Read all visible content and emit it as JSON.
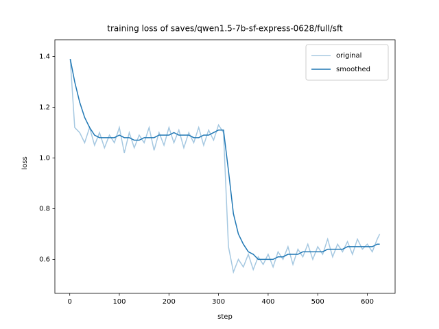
{
  "chart_data": {
    "type": "line",
    "title": "training loss of saves/qwen1.5-7b-sf-express-0628/full/sft",
    "x_label": "step",
    "y_label": "loss",
    "x": [
      1,
      10,
      20,
      30,
      40,
      50,
      60,
      70,
      80,
      90,
      100,
      110,
      120,
      130,
      140,
      150,
      160,
      170,
      180,
      190,
      200,
      210,
      220,
      230,
      240,
      250,
      260,
      270,
      280,
      290,
      300,
      310,
      320,
      330,
      340,
      350,
      360,
      370,
      380,
      390,
      400,
      410,
      420,
      430,
      440,
      450,
      460,
      470,
      480,
      490,
      500,
      510,
      520,
      530,
      540,
      550,
      560,
      570,
      580,
      590,
      600,
      610,
      620,
      625
    ],
    "series": [
      {
        "name": "original",
        "color": "#a5c8e1",
        "values": [
          1.39,
          1.12,
          1.1,
          1.06,
          1.12,
          1.05,
          1.1,
          1.04,
          1.09,
          1.06,
          1.12,
          1.02,
          1.1,
          1.04,
          1.09,
          1.06,
          1.12,
          1.03,
          1.1,
          1.05,
          1.12,
          1.06,
          1.11,
          1.04,
          1.1,
          1.06,
          1.12,
          1.05,
          1.11,
          1.07,
          1.13,
          1.1,
          0.65,
          0.55,
          0.6,
          0.57,
          0.62,
          0.56,
          0.61,
          0.58,
          0.62,
          0.57,
          0.63,
          0.6,
          0.65,
          0.58,
          0.64,
          0.61,
          0.66,
          0.6,
          0.65,
          0.62,
          0.68,
          0.61,
          0.66,
          0.63,
          0.67,
          0.62,
          0.68,
          0.64,
          0.66,
          0.63,
          0.68,
          0.7
        ]
      },
      {
        "name": "smoothed",
        "color": "#1f77b4",
        "values": [
          1.39,
          1.3,
          1.22,
          1.16,
          1.12,
          1.09,
          1.08,
          1.08,
          1.08,
          1.08,
          1.09,
          1.08,
          1.08,
          1.07,
          1.07,
          1.08,
          1.08,
          1.08,
          1.09,
          1.09,
          1.09,
          1.1,
          1.09,
          1.09,
          1.09,
          1.08,
          1.08,
          1.09,
          1.09,
          1.1,
          1.11,
          1.11,
          0.95,
          0.78,
          0.7,
          0.66,
          0.63,
          0.62,
          0.6,
          0.6,
          0.6,
          0.6,
          0.61,
          0.61,
          0.62,
          0.62,
          0.62,
          0.63,
          0.63,
          0.63,
          0.63,
          0.63,
          0.64,
          0.64,
          0.64,
          0.64,
          0.65,
          0.65,
          0.65,
          0.65,
          0.65,
          0.65,
          0.66,
          0.66
        ]
      }
    ],
    "xlim": [
      -30,
      656
    ],
    "ylim": [
      0.466,
      1.466
    ],
    "xticks": [
      0,
      100,
      200,
      300,
      400,
      500,
      600
    ],
    "yticks": [
      0.6,
      0.8,
      {
        "value": 1,
        "label": "1.0"
      },
      1.2,
      1.4
    ],
    "legend": "upper right",
    "grid": false
  }
}
